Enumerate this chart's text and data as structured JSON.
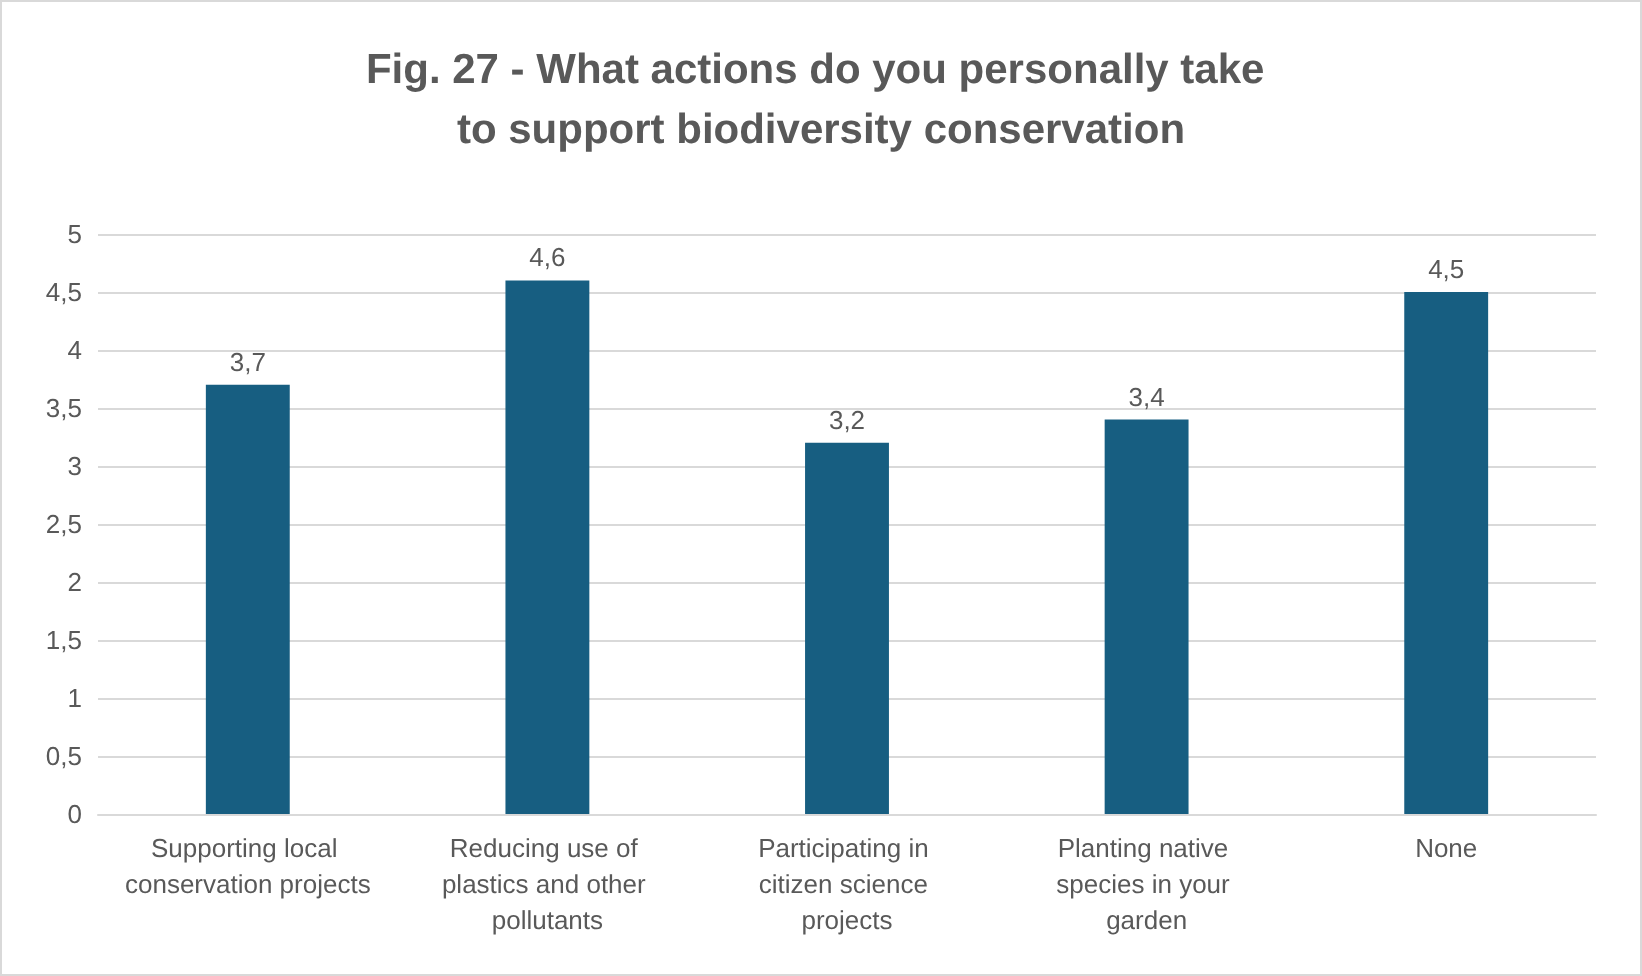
{
  "chart_data": {
    "type": "bar",
    "title": "Fig. 27 - What actions do you personally take to support biodiversity conservation",
    "categories": [
      "Supporting local conservation projects",
      "Reducing use of plastics and other pollutants",
      "Participating in citizen science projects",
      "Planting native species in your garden",
      "None"
    ],
    "values": [
      3.7,
      4.6,
      3.2,
      3.4,
      4.5
    ],
    "value_labels": [
      "3,7",
      "4,6",
      "3,2",
      "3,4",
      "4,5"
    ],
    "color": "#175e81",
    "ylim": [
      0,
      5
    ],
    "yticks": [
      0,
      {
        "value": 0.5,
        "label": "0,5"
      },
      1,
      {
        "value": 1.5,
        "label": "1,5"
      },
      2,
      {
        "value": 2.5,
        "label": "2,5"
      },
      3,
      {
        "value": 3.5,
        "label": "3,5"
      },
      4,
      {
        "value": 4.5,
        "label": "4,5"
      },
      5
    ],
    "grid": "y"
  }
}
